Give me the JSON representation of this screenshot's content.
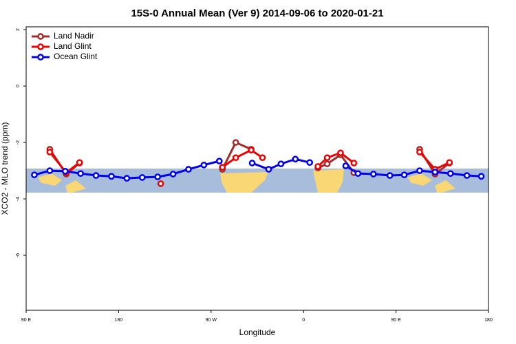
{
  "chart_data": {
    "type": "line",
    "title": "15S-0 Annual Mean (Ver 9)   2014-09-06 to 2020-01-21",
    "x_label": "Longitude",
    "y_label": "XCO2 - MLO trend (ppm)",
    "xlim": [
      90,
      540
    ],
    "ylim": [
      -7.95,
      2.1
    ],
    "xticks": [
      {
        "value": 90,
        "label": "90 E"
      },
      180,
      {
        "value": 270,
        "label": "90 W"
      },
      {
        "value": 360,
        "label": "0"
      },
      {
        "value": 450,
        "label": "90 E"
      },
      {
        "value": 540,
        "label": "180"
      }
    ],
    "yticks": [
      2,
      0,
      -2,
      -4,
      -6
    ],
    "legend": "top-left",
    "series": [
      {
        "name": "Land Nadir",
        "color": "#a52a2a",
        "x": [
          113,
          129,
          142,
          null,
          281,
          294,
          309,
          null,
          374,
          383,
          396,
          409,
          null,
          473,
          488,
          502
        ],
        "values": [
          -2.24,
          -3.12,
          -2.73,
          null,
          -2.95,
          -2.0,
          -2.24,
          null,
          -2.9,
          -2.76,
          -2.44,
          -3.07,
          null,
          -2.24,
          -3.12,
          -2.73
        ]
      },
      {
        "name": "Land Glint",
        "color": "#ee0000",
        "x": [
          113,
          129,
          142,
          null,
          221,
          null,
          281,
          294,
          309,
          320,
          null,
          374,
          383,
          396,
          409,
          null,
          473,
          488,
          502
        ],
        "values": [
          -2.34,
          -3.07,
          -2.71,
          null,
          -3.46,
          null,
          -2.88,
          -2.54,
          -2.27,
          -2.54,
          null,
          -2.85,
          -2.54,
          -2.37,
          -2.73,
          null,
          -2.34,
          -2.95,
          -2.71
        ]
      },
      {
        "name": "Ocean Glint",
        "color": "#0000ee",
        "x": [
          98,
          113,
          128,
          143,
          158,
          173,
          188,
          203,
          218,
          233,
          248,
          263,
          278,
          null,
          310,
          326,
          338,
          352,
          366,
          null,
          401,
          413,
          428,
          444,
          458,
          473,
          488,
          503,
          519,
          533
        ],
        "values": [
          -3.15,
          -3.0,
          -3.02,
          -3.1,
          -3.17,
          -3.2,
          -3.27,
          -3.24,
          -3.22,
          -3.12,
          -2.95,
          -2.8,
          -2.66,
          null,
          -2.73,
          -2.95,
          -2.76,
          -2.59,
          -2.71,
          null,
          -2.83,
          -3.1,
          -3.12,
          -3.17,
          -3.15,
          -3.0,
          -3.05,
          -3.1,
          -3.17,
          -3.2
        ]
      }
    ]
  }
}
